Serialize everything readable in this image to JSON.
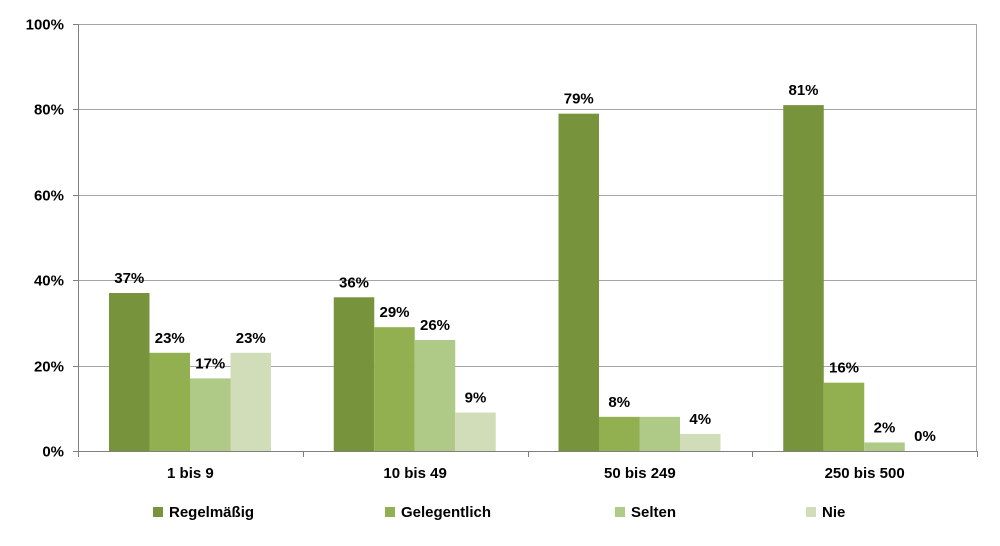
{
  "chart_data": {
    "type": "bar",
    "title": "",
    "xlabel": "",
    "ylabel": "",
    "ylim": [
      0,
      100
    ],
    "y_ticks": [
      "0%",
      "20%",
      "40%",
      "60%",
      "80%",
      "100%"
    ],
    "y_tick_values": [
      0,
      20,
      40,
      60,
      80,
      100
    ],
    "grid": true,
    "legend_position": "bottom",
    "categories": [
      "1 bis 9",
      "10 bis 49",
      "50 bis 249",
      "250 bis 500"
    ],
    "series": [
      {
        "name": "Regelmäßig",
        "color": "#77933c",
        "values": [
          37,
          36,
          79,
          81
        ],
        "labels": [
          "37%",
          "36%",
          "79%",
          "81%"
        ]
      },
      {
        "name": "Gelegentlich",
        "color": "#92b050",
        "values": [
          23,
          29,
          8,
          16
        ],
        "labels": [
          "23%",
          "29%",
          "8%",
          "16%"
        ]
      },
      {
        "name": "Selten",
        "color": "#afc986",
        "values": [
          17,
          26,
          8,
          2
        ],
        "labels": [
          "17%",
          "26%",
          "",
          "2%"
        ]
      },
      {
        "name": "Nie",
        "color": "#d0ddb8",
        "values": [
          23,
          9,
          4,
          0
        ],
        "labels": [
          "23%",
          "9%",
          "4%",
          "0%"
        ]
      }
    ]
  }
}
